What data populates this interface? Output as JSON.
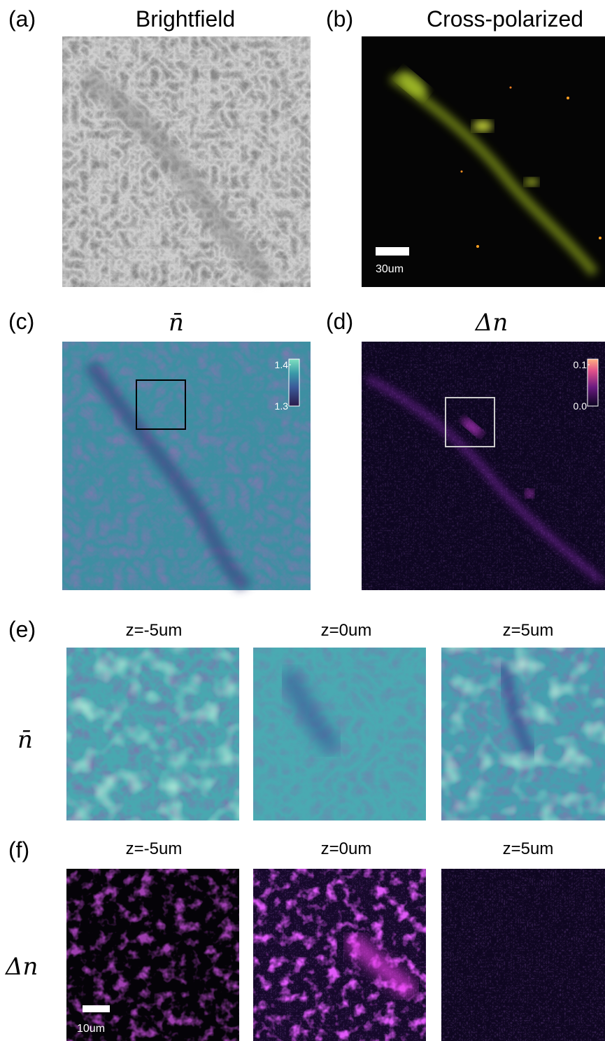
{
  "panels": [
    {
      "label": "(a)",
      "title": "Brightfield"
    },
    {
      "label": "(b)",
      "title": "Cross-polarized",
      "scale_bar": "30um"
    },
    {
      "label": "(c)",
      "title": "n̄",
      "colorbar": {
        "ticks": [
          1.3,
          1.4
        ]
      }
    },
    {
      "label": "(d)",
      "title": "Δn",
      "colorbar": {
        "ticks": [
          {
            "value": 0,
            "label": "0.0"
          },
          0.1
        ]
      }
    },
    {
      "label": "(e)",
      "row_label": "n̄",
      "columns": [
        "z=-5um",
        "z=0um",
        "z=5um"
      ]
    },
    {
      "label": "(f)",
      "row_label": "Δn",
      "columns": [
        "z=-5um",
        "z=0um",
        "z=5um"
      ],
      "scale_bar": "10um"
    }
  ]
}
